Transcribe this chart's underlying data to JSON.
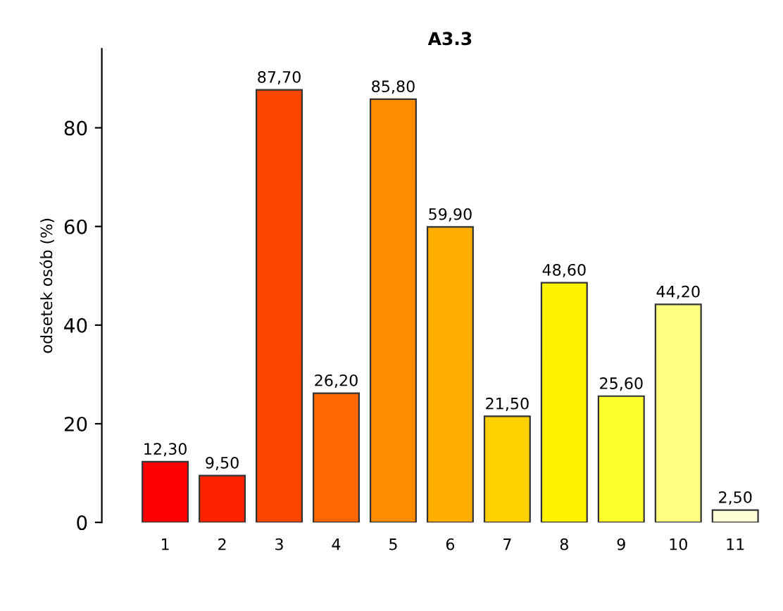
{
  "chart_data": {
    "type": "bar",
    "title": "A3.3",
    "ylabel": "odsetek osób (%)",
    "categories": [
      "1",
      "2",
      "3",
      "4",
      "5",
      "6",
      "7",
      "8",
      "9",
      "10",
      "11"
    ],
    "values": [
      12.3,
      9.5,
      87.7,
      26.2,
      85.8,
      59.9,
      21.5,
      48.6,
      25.6,
      44.2,
      2.5
    ],
    "value_labels": [
      "12,30",
      "9,50",
      "87,70",
      "26,20",
      "85,80",
      "59,90",
      "21,50",
      "48,60",
      "25,60",
      "44,20",
      "2,50"
    ],
    "colors": [
      "#ff0000",
      "#ff2200",
      "#ff4600",
      "#ff6800",
      "#ff8b00",
      "#ffae00",
      "#ffd100",
      "#fff400",
      "#ffff2b",
      "#ffff80",
      "#ffffd5"
    ],
    "ylim": [
      0,
      96
    ],
    "yticks": [
      0,
      20,
      40,
      60,
      80
    ],
    "grid": false,
    "legend": false
  }
}
